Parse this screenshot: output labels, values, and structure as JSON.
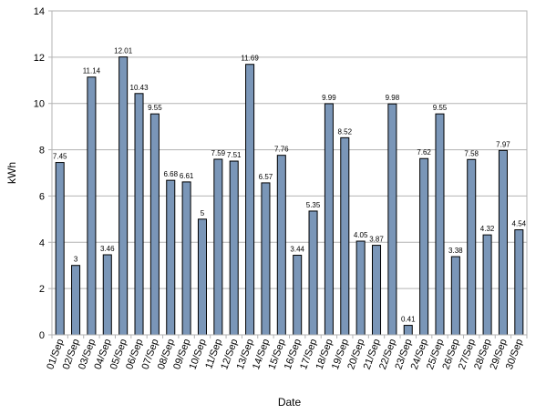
{
  "chart_data": {
    "type": "bar",
    "xlabel": "Date",
    "ylabel": "kWh",
    "ylim": [
      0,
      14
    ],
    "yticks": [
      0,
      2,
      4,
      6,
      8,
      10,
      12,
      14
    ],
    "grid": "horizontal",
    "categories": [
      "01/Sep",
      "02/Sep",
      "03/Sep",
      "04/Sep",
      "05/Sep",
      "06/Sep",
      "07/Sep",
      "08/Sep",
      "09/Sep",
      "10/Sep",
      "11/Sep",
      "12/Sep",
      "13/Sep",
      "14/Sep",
      "15/Sep",
      "16/Sep",
      "17/Sep",
      "18/Sep",
      "19/Sep",
      "20/Sep",
      "21/Sep",
      "22/Sep",
      "23/Sep",
      "24/Sep",
      "25/Sep",
      "26/Sep",
      "27/Sep",
      "28/Sep",
      "29/Sep",
      "30/Sep"
    ],
    "values": [
      7.45,
      3,
      11.14,
      3.46,
      12.01,
      10.43,
      9.55,
      6.68,
      6.61,
      5,
      7.59,
      7.51,
      11.69,
      6.57,
      7.76,
      3.44,
      5.35,
      9.99,
      8.52,
      4.05,
      3.87,
      9.98,
      0.41,
      7.62,
      9.55,
      3.38,
      7.58,
      4.32,
      7.97,
      4.54
    ],
    "value_labels": [
      "7.45",
      "3",
      "11.14",
      "3.46",
      "12.01",
      "10.43",
      "9.55",
      "6.68",
      "6.61",
      "5",
      "7.59",
      "7.51",
      "11.69",
      "6.57",
      "7.76",
      "3.44",
      "5.35",
      "9.99",
      "8.52",
      "4.05",
      "3.87",
      "9.98",
      "0.41",
      "7.62",
      "9.55",
      "3.38",
      "7.58",
      "4.32",
      "7.97",
      "4.54"
    ],
    "bar_color": "#7a96b8",
    "bar_stroke": "#000000",
    "grid_color": "#b3b3b3"
  }
}
